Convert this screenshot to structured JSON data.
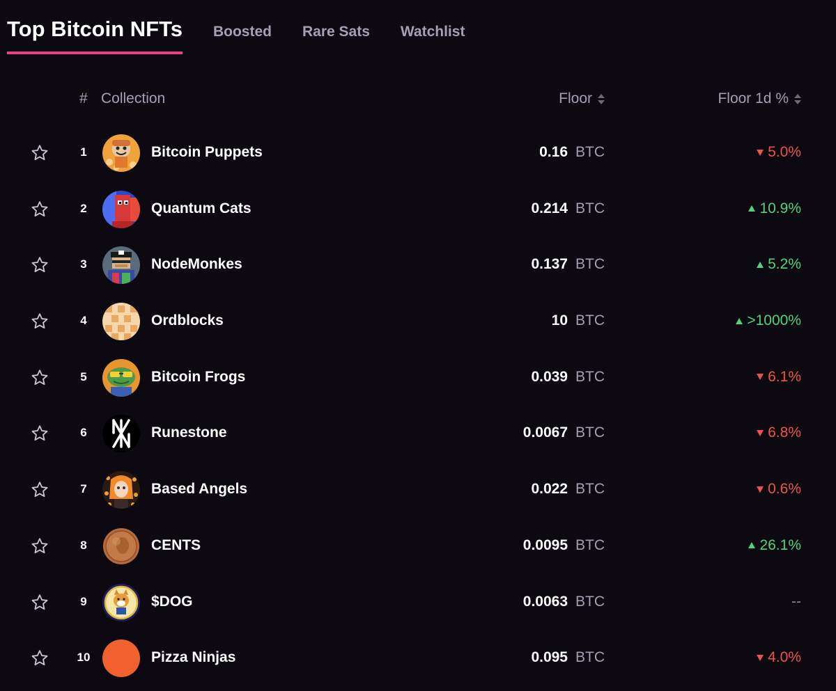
{
  "tabs": [
    {
      "label": "Top Bitcoin NFTs",
      "active": true
    },
    {
      "label": "Boosted",
      "active": false
    },
    {
      "label": "Rare Sats",
      "active": false
    },
    {
      "label": "Watchlist",
      "active": false
    }
  ],
  "table": {
    "headers": {
      "rank": "#",
      "collection": "Collection",
      "floor": "Floor",
      "floor_change": "Floor 1d %"
    },
    "rows": [
      {
        "rank": "1",
        "name": "Bitcoin Puppets",
        "floor": "0.16",
        "unit": "BTC",
        "change": "5.0%",
        "direction": "down",
        "avatar": "bitcoin-puppets-avatar"
      },
      {
        "rank": "2",
        "name": "Quantum Cats",
        "floor": "0.214",
        "unit": "BTC",
        "change": "10.9%",
        "direction": "up",
        "avatar": "quantum-cats-avatar"
      },
      {
        "rank": "3",
        "name": "NodeMonkes",
        "floor": "0.137",
        "unit": "BTC",
        "change": "5.2%",
        "direction": "up",
        "avatar": "nodemonkes-avatar"
      },
      {
        "rank": "4",
        "name": "Ordblocks",
        "floor": "10",
        "unit": "BTC",
        "change": ">1000%",
        "direction": "up",
        "avatar": "ordblocks-avatar"
      },
      {
        "rank": "5",
        "name": "Bitcoin Frogs",
        "floor": "0.039",
        "unit": "BTC",
        "change": "6.1%",
        "direction": "down",
        "avatar": "bitcoin-frogs-avatar"
      },
      {
        "rank": "6",
        "name": "Runestone",
        "floor": "0.0067",
        "unit": "BTC",
        "change": "6.8%",
        "direction": "down",
        "avatar": "runestone-avatar"
      },
      {
        "rank": "7",
        "name": "Based Angels",
        "floor": "0.022",
        "unit": "BTC",
        "change": "0.6%",
        "direction": "down",
        "avatar": "based-angels-avatar"
      },
      {
        "rank": "8",
        "name": "CENTS",
        "floor": "0.0095",
        "unit": "BTC",
        "change": "26.1%",
        "direction": "up",
        "avatar": "cents-avatar"
      },
      {
        "rank": "9",
        "name": "$DOG",
        "floor": "0.0063",
        "unit": "BTC",
        "change": "--",
        "direction": "none",
        "avatar": "dog-avatar"
      },
      {
        "rank": "10",
        "name": "Pizza Ninjas",
        "floor": "0.095",
        "unit": "BTC",
        "change": "4.0%",
        "direction": "down",
        "avatar": "pizza-ninjas-avatar"
      }
    ]
  },
  "colors": {
    "background": "#0c0a10",
    "accent": "#e8437e",
    "positive": "#4fd37f",
    "negative": "#f0524a",
    "muted": "#a69fb4"
  }
}
